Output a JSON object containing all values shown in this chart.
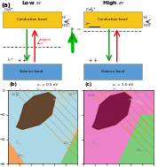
{
  "title_a": "(a)",
  "title_b": "(b)",
  "title_c": "(c)",
  "subtitle_b": "εₑ = 0.5 eV",
  "subtitle_c": "εₑ = 3.0 eV",
  "xlabel": "μₜᵒ (eV)",
  "ylabel": "μ₀ (eV)",
  "xlim": [
    -12,
    0
  ],
  "ylim": [
    -6,
    0
  ],
  "cb_color": "#f5c518",
  "vb_color": "#5b9bd5",
  "arrow_up_color": "#00cc00",
  "b_orange": "#f4a060",
  "b_blue": "#add8e6",
  "b_green": "#7ccc7c",
  "b_blade": "#5c3a1e",
  "c_pink": "#ee82c8",
  "c_green": "#7ccc7c",
  "c_blade": "#7b1040"
}
